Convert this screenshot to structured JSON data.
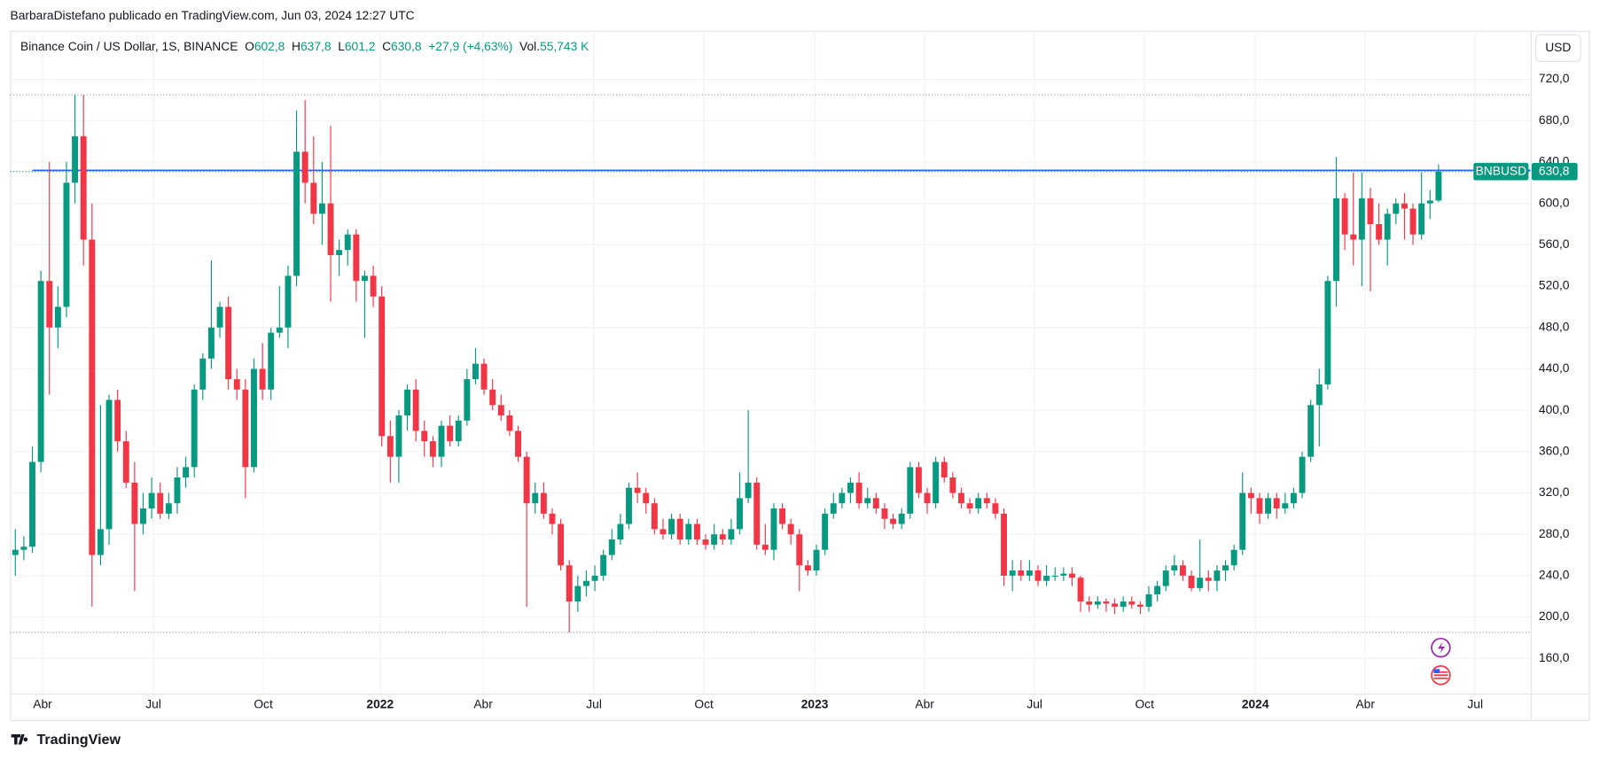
{
  "header": "BarbaraDistefano publicado en TradingView.com, Jun 03, 2024 12:27 UTC",
  "footer": "TradingView",
  "currency_button": "USD",
  "legend": {
    "symbol": "Binance Coin / US Dollar, 1S, BINANCE",
    "o_label": "O",
    "o": "602,8",
    "h_label": "H",
    "h": "637,8",
    "l_label": "L",
    "l": "601,2",
    "c_label": "C",
    "c": "630,8",
    "change": "+27,9 (+4,63%)",
    "vol_label": "Vol.",
    "vol": "55,743 K"
  },
  "price_tag": {
    "symbol": "BNBUSD",
    "price": "630,8"
  },
  "chart_data": {
    "type": "candlestick",
    "up_color": "#089981",
    "down_color": "#f23645",
    "grid": true,
    "trendline": {
      "value": 632,
      "color": "#2962ff"
    },
    "xlim": [
      -0.6,
      177.8
    ],
    "ylim": [
      126,
      767
    ],
    "yticks": [
      {
        "value": 160,
        "label": "160,0"
      },
      {
        "value": 200,
        "label": "200,0"
      },
      {
        "value": 240,
        "label": "240,0"
      },
      {
        "value": 280,
        "label": "280,0"
      },
      {
        "value": 320,
        "label": "320,0"
      },
      {
        "value": 360,
        "label": "360,0"
      },
      {
        "value": 400,
        "label": "400,0"
      },
      {
        "value": 440,
        "label": "440,0"
      },
      {
        "value": 480,
        "label": "480,0"
      },
      {
        "value": 520,
        "label": "520,0"
      },
      {
        "value": 560,
        "label": "560,0"
      },
      {
        "value": 600,
        "label": "600,0"
      },
      {
        "value": 640,
        "label": "640,0"
      },
      {
        "value": 680,
        "label": "680,0"
      },
      {
        "value": 720,
        "label": "720,0"
      }
    ],
    "xticks": [
      {
        "value": 3.2,
        "label": "Abr"
      },
      {
        "value": 16.2,
        "label": "Jul"
      },
      {
        "value": 29.1,
        "label": "Oct"
      },
      {
        "value": 42.8,
        "label": "2022",
        "bold": true
      },
      {
        "value": 54.9,
        "label": "Abr"
      },
      {
        "value": 67.9,
        "label": "Jul"
      },
      {
        "value": 80.8,
        "label": "Oct"
      },
      {
        "value": 93.8,
        "label": "2023",
        "bold": true
      },
      {
        "value": 106.7,
        "label": "Abr"
      },
      {
        "value": 119.6,
        "label": "Jul"
      },
      {
        "value": 132.5,
        "label": "Oct"
      },
      {
        "value": 145.5,
        "label": "2024",
        "bold": true
      },
      {
        "value": 158.4,
        "label": "Abr"
      },
      {
        "value": 171.3,
        "label": "Jul"
      }
    ],
    "ohlc": [
      [
        260,
        285,
        240,
        265
      ],
      [
        265,
        278,
        255,
        268
      ],
      [
        268,
        365,
        262,
        350
      ],
      [
        350,
        535,
        340,
        525
      ],
      [
        525,
        640,
        415,
        480
      ],
      [
        480,
        520,
        460,
        500
      ],
      [
        500,
        640,
        490,
        620
      ],
      [
        620,
        705,
        600,
        665
      ],
      [
        665,
        705,
        540,
        565
      ],
      [
        565,
        600,
        210,
        260
      ],
      [
        260,
        405,
        250,
        285
      ],
      [
        285,
        415,
        270,
        410
      ],
      [
        410,
        420,
        360,
        370
      ],
      [
        370,
        380,
        325,
        330
      ],
      [
        330,
        350,
        225,
        290
      ],
      [
        290,
        320,
        280,
        305
      ],
      [
        305,
        335,
        295,
        320
      ],
      [
        320,
        330,
        295,
        300
      ],
      [
        300,
        320,
        295,
        310
      ],
      [
        310,
        345,
        300,
        335
      ],
      [
        335,
        355,
        325,
        345
      ],
      [
        345,
        425,
        335,
        420
      ],
      [
        420,
        455,
        410,
        450
      ],
      [
        450,
        545,
        440,
        480
      ],
      [
        480,
        505,
        470,
        500
      ],
      [
        500,
        510,
        420,
        430
      ],
      [
        430,
        440,
        410,
        420
      ],
      [
        420,
        430,
        315,
        345
      ],
      [
        345,
        450,
        340,
        440
      ],
      [
        440,
        465,
        410,
        420
      ],
      [
        420,
        480,
        410,
        475
      ],
      [
        475,
        520,
        470,
        480
      ],
      [
        480,
        540,
        460,
        530
      ],
      [
        530,
        690,
        520,
        650
      ],
      [
        650,
        700,
        600,
        620
      ],
      [
        620,
        665,
        580,
        590
      ],
      [
        590,
        640,
        560,
        600
      ],
      [
        600,
        675,
        505,
        550
      ],
      [
        550,
        565,
        530,
        555
      ],
      [
        555,
        575,
        540,
        570
      ],
      [
        570,
        575,
        505,
        525
      ],
      [
        525,
        535,
        470,
        530
      ],
      [
        530,
        540,
        500,
        510
      ],
      [
        510,
        520,
        365,
        375
      ],
      [
        375,
        390,
        330,
        355
      ],
      [
        355,
        400,
        330,
        395
      ],
      [
        395,
        425,
        380,
        420
      ],
      [
        420,
        430,
        370,
        380
      ],
      [
        380,
        390,
        355,
        370
      ],
      [
        370,
        375,
        345,
        355
      ],
      [
        355,
        390,
        345,
        385
      ],
      [
        385,
        395,
        365,
        370
      ],
      [
        370,
        395,
        365,
        390
      ],
      [
        390,
        440,
        385,
        430
      ],
      [
        430,
        460,
        425,
        445
      ],
      [
        445,
        450,
        415,
        420
      ],
      [
        420,
        430,
        400,
        405
      ],
      [
        405,
        415,
        390,
        395
      ],
      [
        395,
        400,
        375,
        380
      ],
      [
        380,
        385,
        350,
        355
      ],
      [
        355,
        360,
        210,
        310
      ],
      [
        310,
        330,
        300,
        320
      ],
      [
        320,
        330,
        295,
        300
      ],
      [
        300,
        305,
        280,
        290
      ],
      [
        290,
        295,
        245,
        250
      ],
      [
        250,
        255,
        185,
        215
      ],
      [
        215,
        240,
        205,
        230
      ],
      [
        230,
        245,
        220,
        235
      ],
      [
        235,
        250,
        225,
        240
      ],
      [
        240,
        265,
        235,
        260
      ],
      [
        260,
        285,
        255,
        275
      ],
      [
        275,
        300,
        270,
        290
      ],
      [
        290,
        330,
        285,
        325
      ],
      [
        325,
        340,
        310,
        320
      ],
      [
        320,
        325,
        300,
        310
      ],
      [
        310,
        315,
        280,
        285
      ],
      [
        285,
        295,
        275,
        280
      ],
      [
        280,
        300,
        275,
        295
      ],
      [
        295,
        300,
        270,
        275
      ],
      [
        275,
        295,
        270,
        290
      ],
      [
        290,
        295,
        270,
        275
      ],
      [
        275,
        280,
        265,
        270
      ],
      [
        270,
        290,
        265,
        280
      ],
      [
        280,
        285,
        270,
        275
      ],
      [
        275,
        295,
        270,
        285
      ],
      [
        285,
        340,
        280,
        315
      ],
      [
        315,
        400,
        310,
        330
      ],
      [
        330,
        335,
        265,
        270
      ],
      [
        270,
        290,
        260,
        265
      ],
      [
        265,
        310,
        255,
        305
      ],
      [
        305,
        310,
        285,
        290
      ],
      [
        290,
        295,
        270,
        280
      ],
      [
        280,
        285,
        225,
        250
      ],
      [
        250,
        255,
        240,
        245
      ],
      [
        245,
        270,
        240,
        265
      ],
      [
        265,
        305,
        260,
        300
      ],
      [
        300,
        320,
        295,
        310
      ],
      [
        310,
        325,
        305,
        320
      ],
      [
        320,
        335,
        310,
        330
      ],
      [
        330,
        340,
        305,
        310
      ],
      [
        310,
        325,
        305,
        315
      ],
      [
        315,
        320,
        300,
        305
      ],
      [
        305,
        310,
        285,
        295
      ],
      [
        295,
        300,
        285,
        290
      ],
      [
        290,
        305,
        285,
        300
      ],
      [
        300,
        350,
        295,
        345
      ],
      [
        345,
        350,
        315,
        320
      ],
      [
        320,
        325,
        300,
        310
      ],
      [
        310,
        355,
        305,
        350
      ],
      [
        350,
        355,
        330,
        335
      ],
      [
        335,
        340,
        315,
        320
      ],
      [
        320,
        325,
        305,
        310
      ],
      [
        310,
        315,
        300,
        305
      ],
      [
        305,
        320,
        300,
        315
      ],
      [
        315,
        320,
        305,
        310
      ],
      [
        310,
        315,
        295,
        300
      ],
      [
        300,
        305,
        230,
        240
      ],
      [
        240,
        255,
        225,
        245
      ],
      [
        245,
        255,
        235,
        240
      ],
      [
        240,
        255,
        235,
        245
      ],
      [
        245,
        250,
        230,
        235
      ],
      [
        235,
        250,
        230,
        240
      ],
      [
        240,
        248,
        235,
        240
      ],
      [
        240,
        248,
        235,
        242
      ],
      [
        242,
        248,
        230,
        238
      ],
      [
        238,
        240,
        205,
        215
      ],
      [
        215,
        220,
        205,
        212
      ],
      [
        212,
        220,
        208,
        215
      ],
      [
        215,
        218,
        205,
        213
      ],
      [
        213,
        218,
        203,
        210
      ],
      [
        210,
        220,
        205,
        215
      ],
      [
        215,
        220,
        208,
        212
      ],
      [
        212,
        215,
        203,
        210
      ],
      [
        210,
        230,
        205,
        222
      ],
      [
        222,
        235,
        215,
        230
      ],
      [
        230,
        250,
        225,
        245
      ],
      [
        245,
        260,
        240,
        250
      ],
      [
        250,
        255,
        235,
        240
      ],
      [
        240,
        245,
        225,
        228
      ],
      [
        228,
        275,
        225,
        238
      ],
      [
        238,
        245,
        225,
        235
      ],
      [
        235,
        250,
        225,
        245
      ],
      [
        245,
        255,
        235,
        250
      ],
      [
        250,
        270,
        245,
        265
      ],
      [
        265,
        340,
        260,
        320
      ],
      [
        320,
        325,
        300,
        315
      ],
      [
        315,
        320,
        290,
        300
      ],
      [
        300,
        320,
        295,
        315
      ],
      [
        315,
        320,
        295,
        305
      ],
      [
        305,
        320,
        300,
        310
      ],
      [
        310,
        325,
        305,
        320
      ],
      [
        320,
        360,
        315,
        355
      ],
      [
        355,
        410,
        350,
        405
      ],
      [
        405,
        440,
        365,
        425
      ],
      [
        425,
        530,
        420,
        525
      ],
      [
        525,
        645,
        500,
        605
      ],
      [
        605,
        610,
        555,
        570
      ],
      [
        570,
        630,
        540,
        565
      ],
      [
        565,
        630,
        520,
        605
      ],
      [
        605,
        615,
        515,
        580
      ],
      [
        580,
        600,
        560,
        565
      ],
      [
        565,
        595,
        540,
        590
      ],
      [
        590,
        605,
        580,
        600
      ],
      [
        600,
        610,
        565,
        595
      ],
      [
        595,
        600,
        560,
        570
      ],
      [
        570,
        630,
        565,
        600
      ],
      [
        600,
        613,
        585,
        602.8
      ],
      [
        602.8,
        637.8,
        601.2,
        630.8
      ]
    ]
  }
}
